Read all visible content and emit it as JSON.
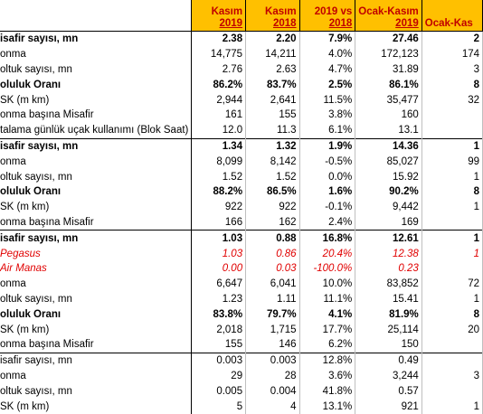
{
  "header": {
    "columns": [
      {
        "line1": "Kasım",
        "line2": "2019"
      },
      {
        "line1": "Kasım",
        "line2": "2018"
      },
      {
        "line1": "2019 vs",
        "line2": "2018"
      },
      {
        "line1": "Ocak-Kasım",
        "line2": "2019"
      },
      {
        "line1": "Ocak-Kas",
        "line2": ""
      }
    ]
  },
  "rows": [
    {
      "label": "isafir sayısı, mn",
      "v": [
        "2.38",
        "2.20",
        "7.9%",
        "27.46",
        "2"
      ],
      "style": "bold",
      "sep": "top"
    },
    {
      "label": "onma",
      "v": [
        "14,775",
        "14,211",
        "4.0%",
        "172,123",
        "174"
      ],
      "style": "normal"
    },
    {
      "label": "oltuk sayısı, mn",
      "v": [
        "2.76",
        "2.63",
        "4.7%",
        "31.89",
        "3"
      ],
      "style": "normal"
    },
    {
      "label": "oluluk Oranı",
      "v": [
        "86.2%",
        "83.7%",
        "2.5%",
        "86.1%",
        "8"
      ],
      "style": "bold"
    },
    {
      "label": "SK (m km)",
      "v": [
        "2,944",
        "2,641",
        "11.5%",
        "35,477",
        "32"
      ],
      "style": "normal"
    },
    {
      "label": "onma başına Misafir",
      "v": [
        "161",
        "155",
        "3.8%",
        "160",
        ""
      ],
      "style": "normal"
    },
    {
      "label": "talama günlük uçak kullanımı (Blok Saat)",
      "v": [
        "12.0",
        "11.3",
        "6.1%",
        "13.1",
        ""
      ],
      "style": "normal"
    },
    {
      "label": "isafir sayısı, mn",
      "v": [
        "1.34",
        "1.32",
        "1.9%",
        "14.36",
        "1"
      ],
      "style": "bold",
      "sep": "top"
    },
    {
      "label": "onma",
      "v": [
        "8,099",
        "8,142",
        "-0.5%",
        "85,027",
        "99"
      ],
      "style": "normal"
    },
    {
      "label": "oltuk sayısı, mn",
      "v": [
        "1.52",
        "1.52",
        "0.0%",
        "15.92",
        "1"
      ],
      "style": "normal"
    },
    {
      "label": "oluluk Oranı",
      "v": [
        "88.2%",
        "86.5%",
        "1.6%",
        "90.2%",
        "8"
      ],
      "style": "bold"
    },
    {
      "label": "SK (m km)",
      "v": [
        "922",
        "922",
        "-0.1%",
        "9,442",
        "1"
      ],
      "style": "normal"
    },
    {
      "label": "onma başına Misafir",
      "v": [
        "166",
        "162",
        "2.4%",
        "169",
        ""
      ],
      "style": "normal"
    },
    {
      "label": "isafir sayısı, mn",
      "v": [
        "1.03",
        "0.88",
        "16.8%",
        "12.61",
        "1"
      ],
      "style": "bold",
      "sep": "top"
    },
    {
      "label": "Pegasus",
      "v": [
        "1.03",
        "0.86",
        "20.4%",
        "12.38",
        "1"
      ],
      "style": "red"
    },
    {
      "label": "Air Manas",
      "v": [
        "0.00",
        "0.03",
        "-100.0%",
        "0.23",
        ""
      ],
      "style": "red"
    },
    {
      "label": "onma",
      "v": [
        "6,647",
        "6,041",
        "10.0%",
        "83,852",
        "72"
      ],
      "style": "normal"
    },
    {
      "label": "oltuk sayısı, mn",
      "v": [
        "1.23",
        "1.11",
        "11.1%",
        "15.41",
        "1"
      ],
      "style": "normal"
    },
    {
      "label": "oluluk Oranı",
      "v": [
        "83.8%",
        "79.7%",
        "4.1%",
        "81.9%",
        "8"
      ],
      "style": "bold"
    },
    {
      "label": "SK (m km)",
      "v": [
        "2,018",
        "1,715",
        "17.7%",
        "25,114",
        "20"
      ],
      "style": "normal"
    },
    {
      "label": "onma başına Misafir",
      "v": [
        "155",
        "146",
        "6.2%",
        "150",
        ""
      ],
      "style": "normal"
    },
    {
      "label": "isafir sayısı, mn",
      "v": [
        "0.003",
        "0.003",
        "12.8%",
        "0.49",
        ""
      ],
      "style": "normal",
      "sep": "top"
    },
    {
      "label": "onma",
      "v": [
        "29",
        "28",
        "3.6%",
        "3,244",
        "3"
      ],
      "style": "normal"
    },
    {
      "label": "oltuk sayısı, mn",
      "v": [
        "0.005",
        "0.004",
        "41.8%",
        "0.57",
        ""
      ],
      "style": "normal"
    },
    {
      "label": "SK (m km)",
      "v": [
        "5",
        "4",
        "13.1%",
        "921",
        "1"
      ],
      "style": "normal"
    }
  ]
}
